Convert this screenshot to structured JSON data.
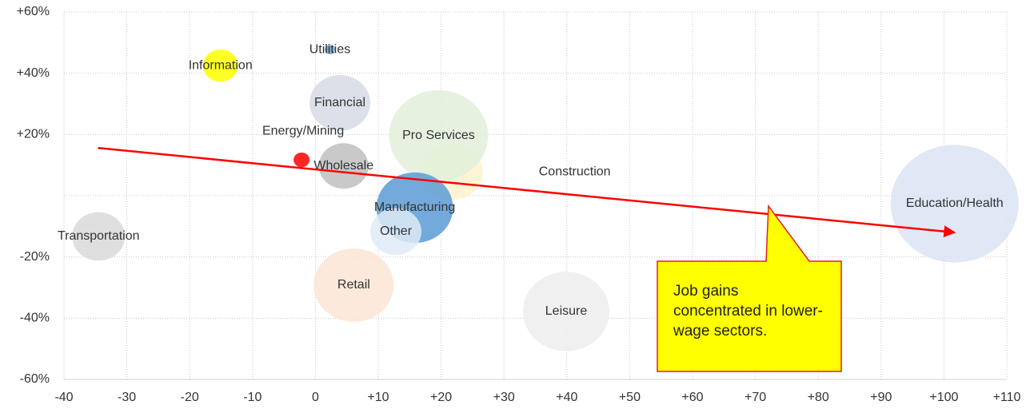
{
  "chart_data": {
    "type": "bubble",
    "xlim": [
      -40,
      110
    ],
    "xticks": [
      -40,
      -30,
      -20,
      -10,
      0,
      {
        "value": 10,
        "label": "+10"
      },
      {
        "value": 20,
        "label": "+20"
      },
      {
        "value": 30,
        "label": "+30"
      },
      {
        "value": 40,
        "label": "+40"
      },
      {
        "value": 50,
        "label": "+50"
      },
      {
        "value": 60,
        "label": "+60"
      },
      {
        "value": 70,
        "label": "+70"
      },
      {
        "value": 80,
        "label": "+80"
      },
      {
        "value": 90,
        "label": "+90"
      },
      {
        "value": 100,
        "label": "+100"
      },
      {
        "value": 110,
        "label": "+110"
      }
    ],
    "ylim": [
      -60,
      60
    ],
    "yticks": [
      {
        "value": -60,
        "label": "-60%"
      },
      {
        "value": -40,
        "label": "-40%"
      },
      {
        "value": -20,
        "label": "-20%"
      },
      {
        "value": 20,
        "label": "+20%"
      },
      {
        "value": 40,
        "label": "+40%"
      },
      {
        "value": 60,
        "label": "+60%"
      }
    ],
    "zero_line": true,
    "grid": true,
    "points": [
      {
        "name": "Transportation",
        "color": "#d9d9d9",
        "x": -34.5,
        "y": -13.3,
        "size": 10.9
      },
      {
        "name": "Information",
        "color": "#ffff00",
        "x": -15.1,
        "y": 42.5,
        "size": 4.8
      },
      {
        "name": "Utilities",
        "color": "#6fa0d8",
        "x": 2.3,
        "y": 47.7,
        "size": 0.4
      },
      {
        "name": "Financial",
        "color": "#d6dce5",
        "x": 3.9,
        "y": 30.3,
        "size": 14.4
      },
      {
        "name": "Construction",
        "color": "#fff2cc",
        "x": 21.8,
        "y": 7.8,
        "size": 14.4
      },
      {
        "name": "Pro Services",
        "color": "#e2f0d9",
        "x": 19.6,
        "y": 19.6,
        "size": 38.4
      },
      {
        "name": "Wholesale",
        "color": "#bfbfbf",
        "x": 4.5,
        "y": 9.7,
        "size": 9.6
      },
      {
        "name": "Energy/Mining",
        "color": "#ff0000",
        "x": -2.2,
        "y": 11.7,
        "size": 1.0
      },
      {
        "name": "Manufacturing",
        "color": "#5b9bd5",
        "x": 15.8,
        "y": -3.9,
        "size": 23.0
      },
      {
        "name": "Other",
        "color": "#deebf7",
        "x": 12.8,
        "y": -11.7,
        "size": 10.2
      },
      {
        "name": "Retail",
        "color": "#fbe5d6",
        "x": 6.1,
        "y": -29.2,
        "size": 25.0
      },
      {
        "name": "Leisure",
        "color": "#ededed",
        "x": 39.9,
        "y": -37.8,
        "size": 29.2
      },
      {
        "name": "Education/Health",
        "color": "#dae3f3",
        "x": 101.7,
        "y": -2.6,
        "size": 64.0
      }
    ],
    "trendline": {
      "x": [
        -34.6,
        101.7
      ],
      "y": [
        15.6,
        -12.0
      ],
      "color": "#ff0000"
    },
    "annotation": "Job gains concentrated in lower-wage sectors."
  }
}
